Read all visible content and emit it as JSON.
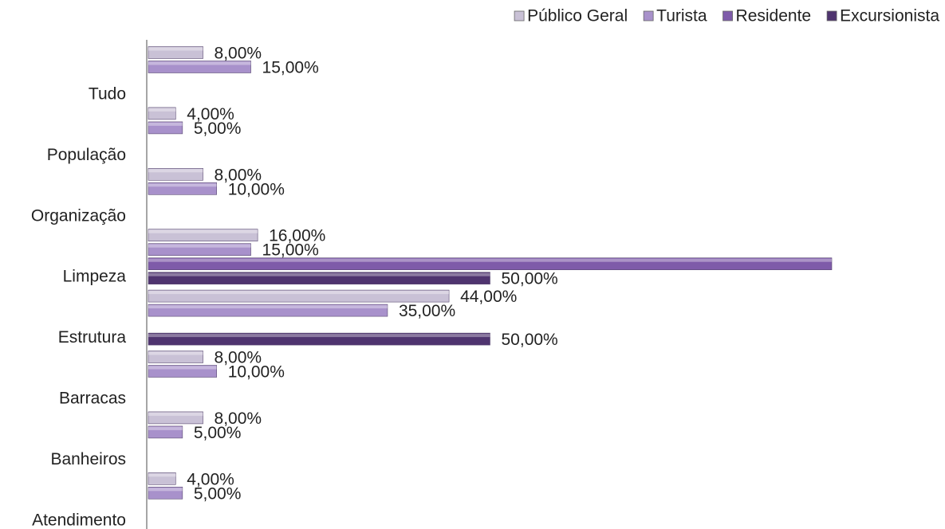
{
  "chart_data": {
    "type": "hbar",
    "categories": [
      "Tudo",
      "População",
      "Organização",
      "Limpeza",
      "Estrutura",
      "Barracas",
      "Banheiros",
      "Atendimento"
    ],
    "xlim": [
      0,
      100
    ],
    "legend": "top-right",
    "series": [
      {
        "name": "Público Geral",
        "color": "#c9c1d6",
        "values": [
          8,
          4,
          8,
          16,
          44,
          8,
          8,
          4
        ],
        "value_labels": [
          "8,00%",
          "4,00%",
          "8,00%",
          "16,00%",
          "44,00%",
          "8,00%",
          "8,00%",
          "4,00%"
        ]
      },
      {
        "name": "Turista",
        "color": "#a891cb",
        "values": [
          15,
          5,
          10,
          15,
          35,
          10,
          5,
          5
        ],
        "value_labels": [
          "15,00%",
          "5,00%",
          "10,00%",
          "15,00%",
          "35,00%",
          "10,00%",
          "5,00%",
          "5,00%"
        ]
      },
      {
        "name": "Residente",
        "color": "#7e5ba9",
        "values": [
          null,
          null,
          null,
          100,
          null,
          null,
          null,
          null
        ],
        "value_labels": [
          null,
          null,
          null,
          null,
          null,
          null,
          null,
          null
        ]
      },
      {
        "name": "Excursionista",
        "color": "#4f346f",
        "values": [
          null,
          null,
          null,
          50,
          50,
          null,
          null,
          null
        ],
        "value_labels": [
          null,
          null,
          null,
          "50,00%",
          "50,00%",
          null,
          null,
          null
        ]
      }
    ]
  }
}
